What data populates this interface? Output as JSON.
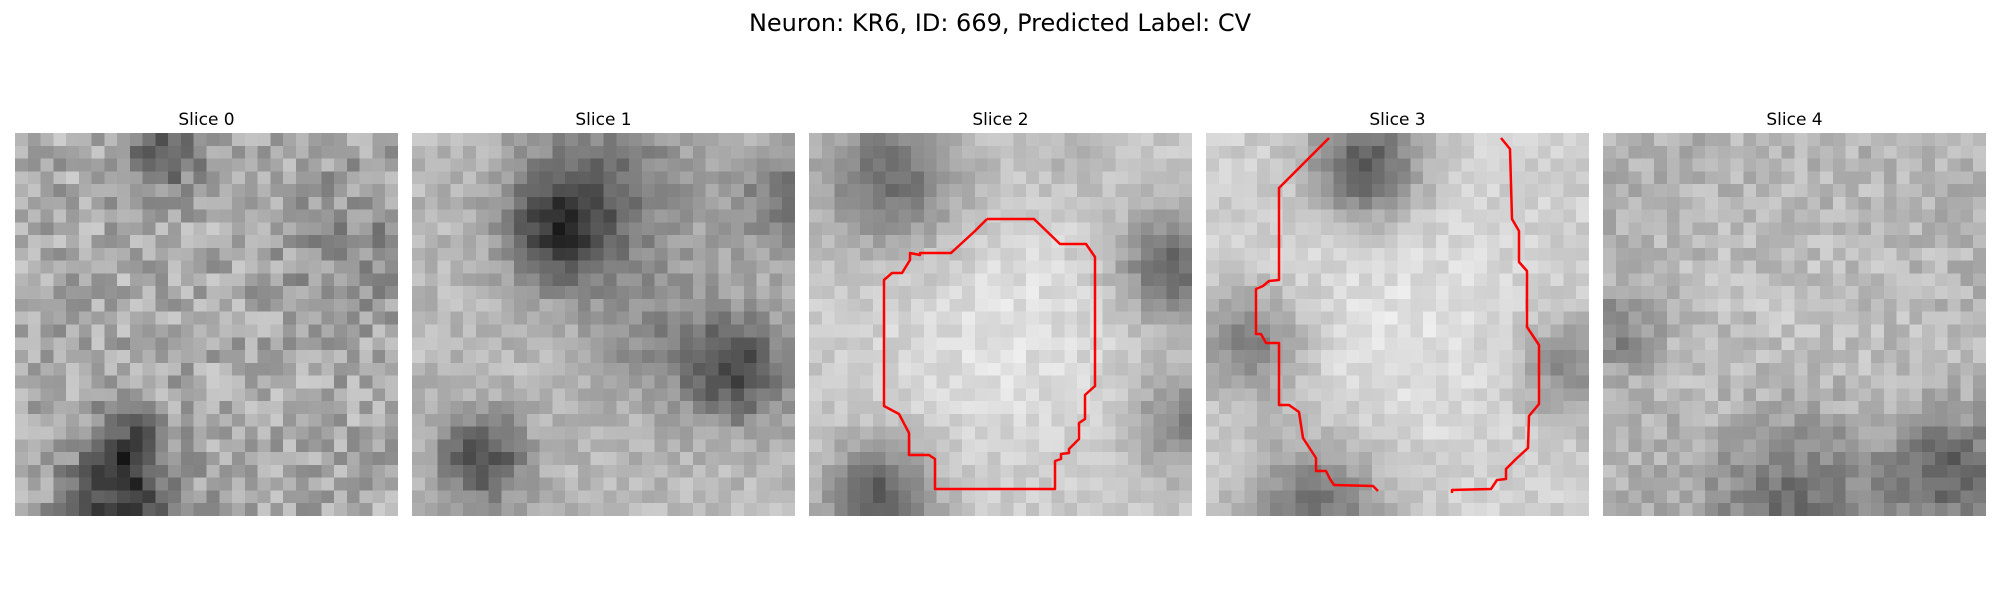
{
  "figure": {
    "title": "Neuron: KR6, ID: 669, Predicted Label: CV"
  },
  "panels": [
    {
      "title": "Slice 0",
      "has_contour": false
    },
    {
      "title": "Slice 1",
      "has_contour": false
    },
    {
      "title": "Slice 2",
      "has_contour": true
    },
    {
      "title": "Slice 3",
      "has_contour": true
    },
    {
      "title": "Slice 4",
      "has_contour": false
    }
  ],
  "colors": {
    "contour": "#ff0000",
    "colormap": "grayscale"
  }
}
